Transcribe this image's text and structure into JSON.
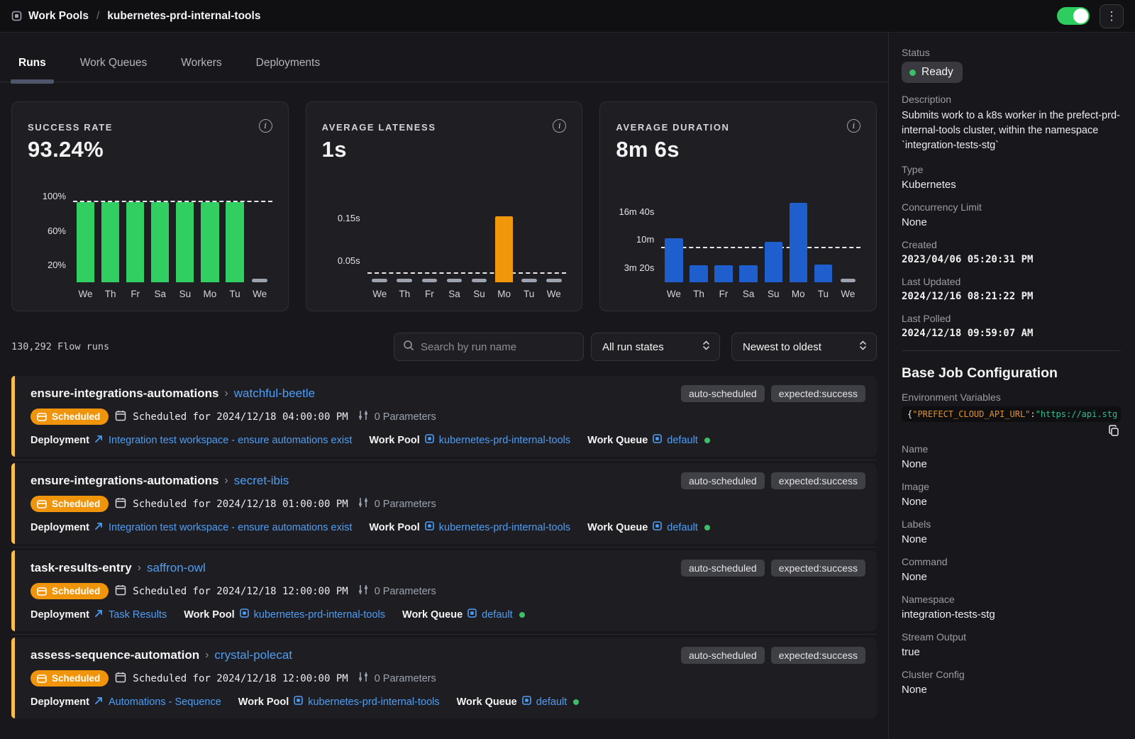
{
  "topbar": {
    "breadcrumb_root": "Work Pools",
    "breadcrumb_separator": "/",
    "breadcrumb_current": "kubernetes-prd-internal-tools",
    "toggle_on": true
  },
  "tabs": {
    "items": [
      {
        "label": "Runs",
        "active": true
      },
      {
        "label": "Work Queues",
        "active": false
      },
      {
        "label": "Workers",
        "active": false
      },
      {
        "label": "Deployments",
        "active": false
      }
    ]
  },
  "chart_data": [
    {
      "type": "bar",
      "title": "SUCCESS RATE",
      "headline": "93.24%",
      "categories": [
        "We",
        "Th",
        "Fr",
        "Sa",
        "Su",
        "Mo",
        "Tu",
        "We"
      ],
      "values": [
        93.24,
        93.24,
        93.24,
        93.24,
        93.24,
        93.24,
        93.24,
        null
      ],
      "yticks": [
        {
          "label": "100%",
          "value": 100
        },
        {
          "label": "60%",
          "value": 60
        },
        {
          "label": "20%",
          "value": 20
        }
      ],
      "ylim": [
        0,
        106
      ],
      "avg_line": 93.24,
      "bar_color": "#31CE62",
      "no_data_color": "#9CA3AF",
      "grid": false,
      "legend": "none"
    },
    {
      "type": "bar",
      "title": "AVERAGE LATENESS",
      "headline": "1s",
      "categories": [
        "We",
        "Th",
        "Fr",
        "Sa",
        "Su",
        "Mo",
        "Tu",
        "We"
      ],
      "values": [
        null,
        null,
        null,
        null,
        null,
        0.155,
        null,
        null
      ],
      "yticks": [
        {
          "label": "0.15s",
          "value": 0.15
        },
        {
          "label": "0.05s",
          "value": 0.05
        }
      ],
      "ylim": [
        0,
        0.214
      ],
      "avg_line": 0.02,
      "bar_color": "#F0970C",
      "no_data_color": "#9CA3AF",
      "grid": false,
      "legend": "none"
    },
    {
      "type": "bar",
      "title": "AVERAGE DURATION",
      "headline": "8m 6s",
      "categories": [
        "We",
        "Th",
        "Fr",
        "Sa",
        "Su",
        "Mo",
        "Tu",
        "We"
      ],
      "values": [
        620,
        240,
        240,
        245,
        575,
        1130,
        255,
        null
      ],
      "values_unit": "seconds",
      "yticks": [
        {
          "label": "16m 40s",
          "value": 1000
        },
        {
          "label": "10m",
          "value": 600
        },
        {
          "label": "3m 20s",
          "value": 200
        }
      ],
      "ylim": [
        0,
        1290
      ],
      "avg_line": 486,
      "bar_color": "#1E5ECD",
      "no_data_color": "#9CA3AF",
      "grid": false,
      "legend": "none"
    }
  ],
  "runs_toolbar": {
    "count": "130,292 Flow runs",
    "search_placeholder": "Search by run name",
    "state_filter": "All run states",
    "sort": "Newest to oldest"
  },
  "run_labels": {
    "deployment": "Deployment",
    "work_pool": "Work Pool",
    "work_queue": "Work Queue"
  },
  "runs": [
    {
      "flow_name": "ensure-integrations-automations",
      "run_name": "watchful-beetle",
      "state": "Scheduled",
      "scheduled": "Scheduled for 2024/12/18 04:00:00 PM",
      "params": "0 Parameters",
      "tags": [
        "auto-scheduled",
        "expected:success"
      ],
      "deployment": "Integration test workspace - ensure automations exist",
      "work_pool": "kubernetes-prd-internal-tools",
      "work_queue": "default"
    },
    {
      "flow_name": "ensure-integrations-automations",
      "run_name": "secret-ibis",
      "state": "Scheduled",
      "scheduled": "Scheduled for 2024/12/18 01:00:00 PM",
      "params": "0 Parameters",
      "tags": [
        "auto-scheduled",
        "expected:success"
      ],
      "deployment": "Integration test workspace - ensure automations exist",
      "work_pool": "kubernetes-prd-internal-tools",
      "work_queue": "default"
    },
    {
      "flow_name": "task-results-entry",
      "run_name": "saffron-owl",
      "state": "Scheduled",
      "scheduled": "Scheduled for 2024/12/18 12:00:00 PM",
      "params": "0 Parameters",
      "tags": [
        "auto-scheduled",
        "expected:success"
      ],
      "deployment": "Task Results",
      "work_pool": "kubernetes-prd-internal-tools",
      "work_queue": "default"
    },
    {
      "flow_name": "assess-sequence-automation",
      "run_name": "crystal-polecat",
      "state": "Scheduled",
      "scheduled": "Scheduled for 2024/12/18 12:00:00 PM",
      "params": "0 Parameters",
      "tags": [
        "auto-scheduled",
        "expected:success"
      ],
      "deployment": "Automations - Sequence",
      "work_pool": "kubernetes-prd-internal-tools",
      "work_queue": "default"
    }
  ],
  "sidebar": {
    "status_label": "Status",
    "status_value": "Ready",
    "description_label": "Description",
    "description_value": "Submits work to a k8s worker in the prefect-prd-internal-tools cluster, within the namespace `integration-tests-stg`",
    "type_label": "Type",
    "type_value": "Kubernetes",
    "concurrency_label": "Concurrency Limit",
    "concurrency_value": "None",
    "created_label": "Created",
    "created_value": "2023/04/06 05:20:31 PM",
    "updated_label": "Last Updated",
    "updated_value": "2024/12/16 08:21:22 PM",
    "polled_label": "Last Polled",
    "polled_value": "2024/12/18 09:59:07 AM",
    "base_job_heading": "Base Job Configuration",
    "env_label": "Environment Variables",
    "env_brace": "{",
    "env_key": "\"PREFECT_CLOUD_API_URL\"",
    "env_colon": ":",
    "env_value": "\"https://api.stg",
    "fields": [
      {
        "label": "Name",
        "value": "None"
      },
      {
        "label": "Image",
        "value": "None"
      },
      {
        "label": "Labels",
        "value": "None"
      },
      {
        "label": "Command",
        "value": "None"
      },
      {
        "label": "Namespace",
        "value": "integration-tests-stg"
      },
      {
        "label": "Stream Output",
        "value": "true"
      },
      {
        "label": "Cluster Config",
        "value": "None"
      }
    ]
  },
  "colors": {
    "success_green": "#31CE62",
    "lateness_orange": "#F0970C",
    "duration_blue": "#1E5ECD",
    "scheduled_pill": "#F0940B",
    "link_blue": "#4E9DF5",
    "row_stripe": "#F6BE4F",
    "ready_dot": "#3DBE68",
    "toggle_on": "#2FCC5F"
  }
}
